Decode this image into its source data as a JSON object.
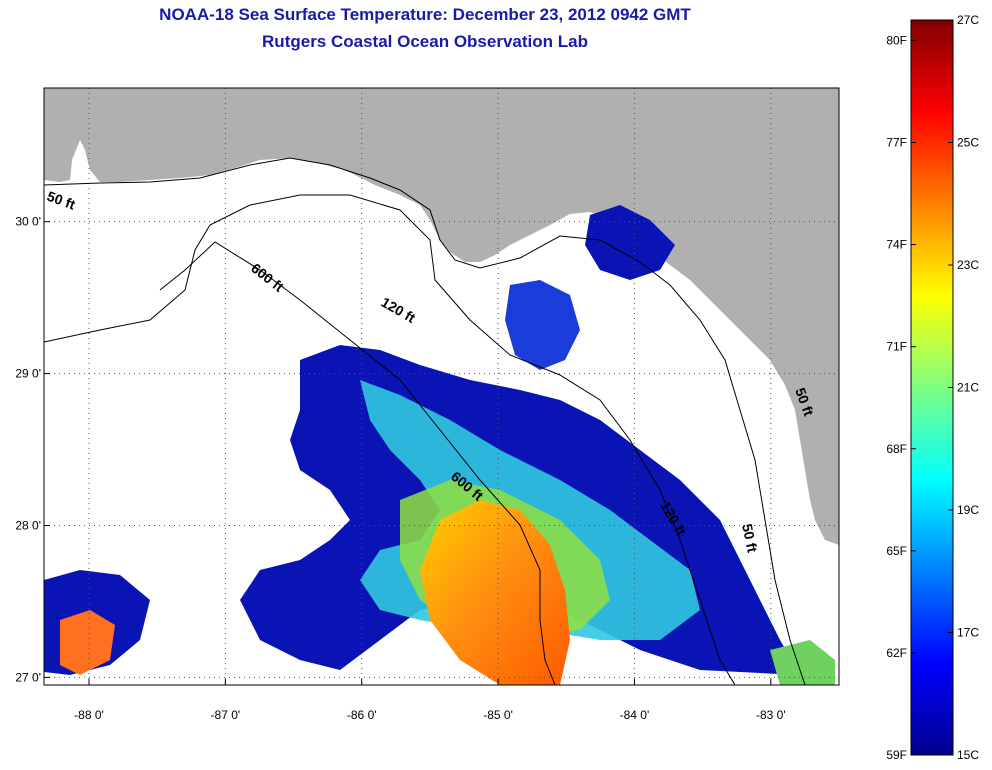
{
  "title": {
    "line1": "NOAA-18 Sea Surface Temperature:  December 23, 2012 0942 GMT",
    "line2": "Rutgers Coastal Ocean Observation Lab"
  },
  "map": {
    "lon_range": [
      -88.33,
      -82.5
    ],
    "lat_range": [
      26.95,
      30.88
    ],
    "lon_ticks": [
      {
        "value": -88,
        "label": "-88 0'"
      },
      {
        "value": -87,
        "label": "-87 0'"
      },
      {
        "value": -86,
        "label": "-86 0'"
      },
      {
        "value": -85,
        "label": "-85 0'"
      },
      {
        "value": -84,
        "label": "-84 0'"
      },
      {
        "value": -83,
        "label": "-83 0'"
      }
    ],
    "lat_ticks": [
      {
        "value": 30,
        "label": "30 0'"
      },
      {
        "value": 29,
        "label": "29 0'"
      },
      {
        "value": 28,
        "label": "28 0'"
      },
      {
        "value": 27,
        "label": "27 0'"
      }
    ],
    "grid": true,
    "land_color": "#b0b0b0",
    "cloud_color": "#ffffff",
    "contour_labels": [
      {
        "id": "c50a",
        "text": "50 ft"
      },
      {
        "id": "c600a",
        "text": "600 ft"
      },
      {
        "id": "c120a",
        "text": "120 ft"
      },
      {
        "id": "c600b",
        "text": "600 ft"
      },
      {
        "id": "c120b",
        "text": "120 ft"
      },
      {
        "id": "c50b",
        "text": "50 ft"
      },
      {
        "id": "c50c",
        "text": "50 ft"
      }
    ]
  },
  "colorbar": {
    "celsius": [
      {
        "value": 27,
        "label": "27C"
      },
      {
        "value": 25,
        "label": "25C"
      },
      {
        "value": 23,
        "label": "23C"
      },
      {
        "value": 21,
        "label": "21C"
      },
      {
        "value": 19,
        "label": "19C"
      },
      {
        "value": 17,
        "label": "17C"
      },
      {
        "value": 15,
        "label": "15C"
      }
    ],
    "fahrenheit": [
      {
        "value": 80,
        "label": "80F"
      },
      {
        "value": 77,
        "label": "77F"
      },
      {
        "value": 74,
        "label": "74F"
      },
      {
        "value": 71,
        "label": "71F"
      },
      {
        "value": 68,
        "label": "68F"
      },
      {
        "value": 65,
        "label": "65F"
      },
      {
        "value": 62,
        "label": "62F"
      },
      {
        "value": 59,
        "label": "59F"
      }
    ],
    "colors": [
      "#00008f",
      "#0000ff",
      "#0080ff",
      "#00ffff",
      "#80ff80",
      "#ffff00",
      "#ff8000",
      "#ff0000",
      "#800000"
    ]
  }
}
